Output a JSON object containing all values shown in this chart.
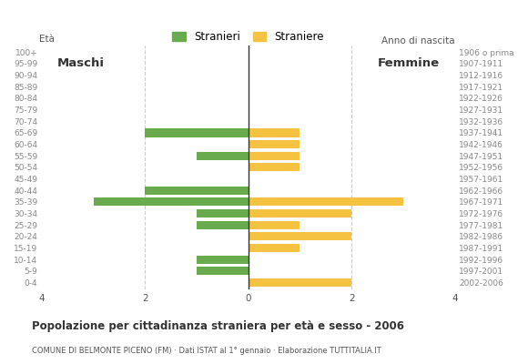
{
  "age_groups": [
    "100+",
    "95-99",
    "90-94",
    "85-89",
    "80-84",
    "75-79",
    "70-74",
    "65-69",
    "60-64",
    "55-59",
    "50-54",
    "45-49",
    "40-44",
    "35-39",
    "30-34",
    "25-29",
    "20-24",
    "15-19",
    "10-14",
    "5-9",
    "0-4"
  ],
  "birth_years": [
    "1906 o prima",
    "1907-1911",
    "1912-1916",
    "1917-1921",
    "1922-1926",
    "1927-1931",
    "1932-1936",
    "1937-1941",
    "1942-1946",
    "1947-1951",
    "1952-1956",
    "1957-1961",
    "1962-1966",
    "1967-1971",
    "1972-1976",
    "1977-1981",
    "1982-1986",
    "1987-1991",
    "1992-1996",
    "1997-2001",
    "2002-2006"
  ],
  "males": [
    0,
    0,
    0,
    0,
    0,
    0,
    0,
    2,
    0,
    1,
    0,
    0,
    2,
    3,
    1,
    1,
    0,
    0,
    1,
    1,
    0
  ],
  "females": [
    0,
    0,
    0,
    0,
    0,
    0,
    0,
    1,
    1,
    1,
    1,
    0,
    0,
    3,
    2,
    1,
    2,
    1,
    0,
    0,
    2
  ],
  "male_color": "#6aaa4f",
  "female_color": "#f5c242",
  "background_color": "#ffffff",
  "grid_color": "#cccccc",
  "title": "Popolazione per cittadinanza straniera per età e sesso - 2006",
  "subtitle": "COMUNE DI BELMONTE PICENO (FM) · Dati ISTAT al 1° gennaio · Elaborazione TUTTITALIA.IT",
  "legend_males": "Stranieri",
  "legend_females": "Straniere",
  "label_eta": "Età",
  "label_anno": "Anno di nascita",
  "label_maschi": "Maschi",
  "label_femmine": "Femmine",
  "xlim": 4,
  "bar_height": 0.72
}
